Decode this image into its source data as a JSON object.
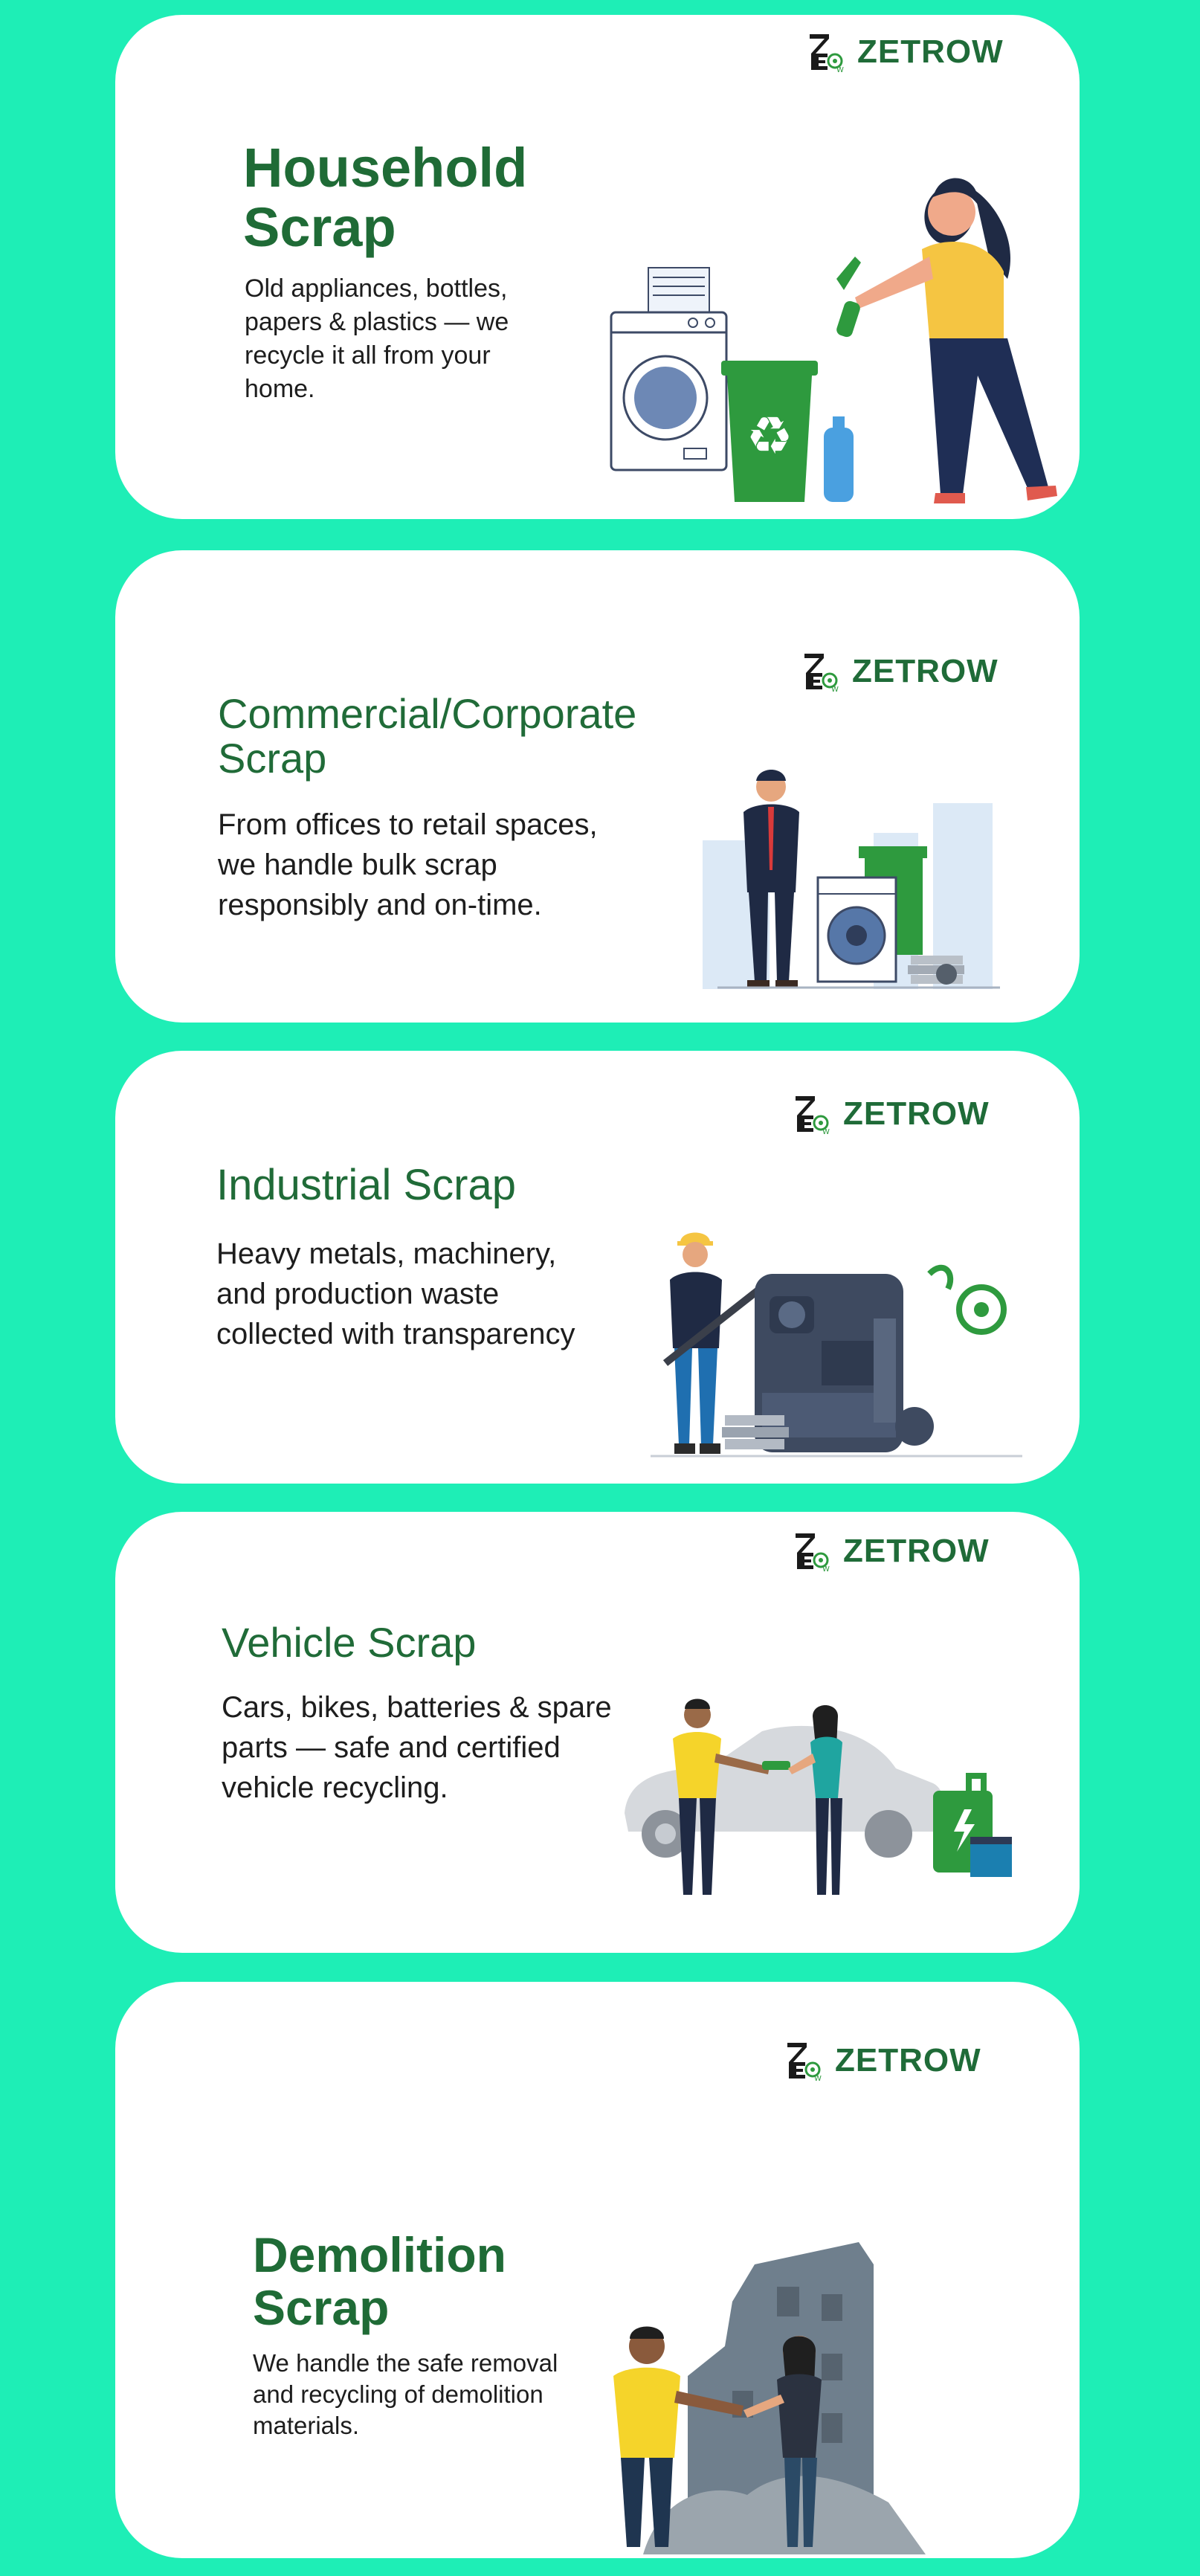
{
  "brand": {
    "name": "ZETROW",
    "icon": "zetrow-logo-icon",
    "color": "#1f6b38"
  },
  "colors": {
    "background": "#1eeeb6",
    "card": "#ffffff",
    "heading": "#1f6b36",
    "accent_green": "#2e9a3e"
  },
  "cards": [
    {
      "title_line1": "Household",
      "title_line2": "Scrap",
      "description": "Old appliances, bottles, papers & plastics — we recycle it all from your home.",
      "illustration": "woman-recycling-bottle-illustration"
    },
    {
      "title_line1": "Commercial/Corporate",
      "title_line2": "Scrap",
      "description": "From offices to retail spaces, we handle bulk scrap responsibly and  on-time.",
      "illustration": "businessman-office-scrap-illustration"
    },
    {
      "title_line1": "Industrial Scrap",
      "description": "Heavy metals, machinery, and production waste collected with transparency",
      "illustration": "worker-machinery-illustration"
    },
    {
      "title_line1": "Vehicle Scrap",
      "description": "Cars, bikes, batteries & spare parts — safe and certified vehicle recycling.",
      "illustration": "car-handover-battery-illustration"
    },
    {
      "title_line1": "Demolition",
      "title_line2": "Scrap",
      "description": "We handle the safe removal and recycling of demolition materials.",
      "illustration": "demolition-building-handshake-illustration"
    }
  ]
}
